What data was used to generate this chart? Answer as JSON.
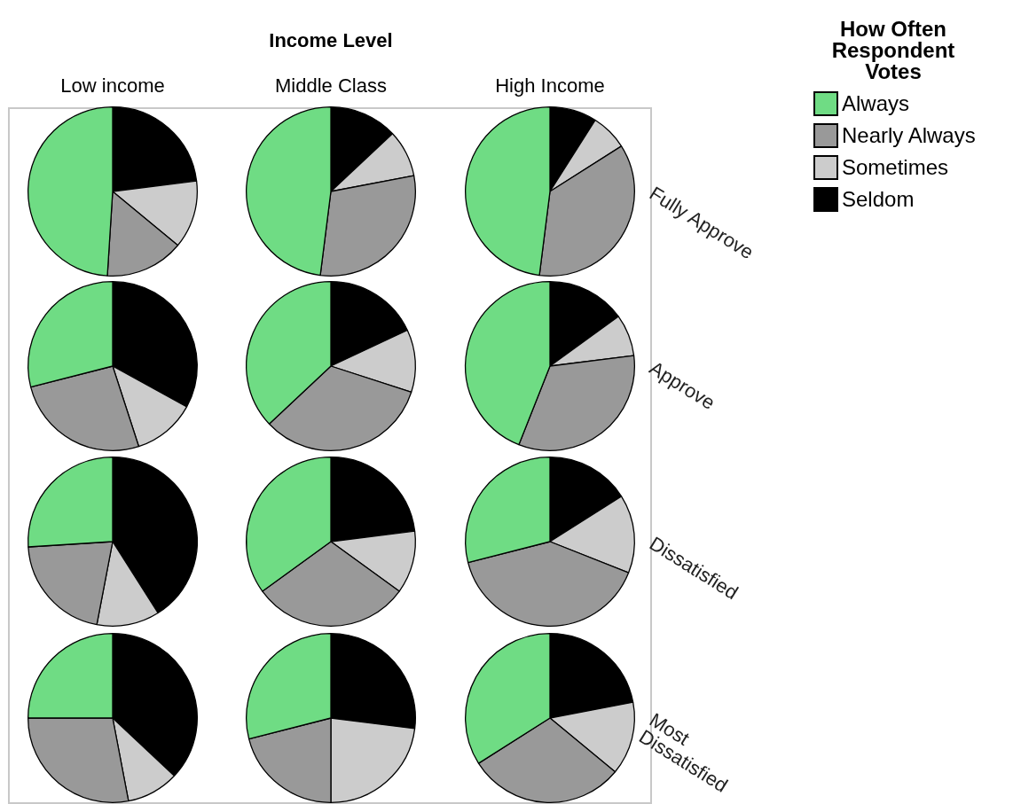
{
  "chart_data": [
    {
      "type": "pie",
      "title": "Low income",
      "categories": [
        null,
        null,
        null,
        null
      ],
      "values": [
        23,
        13,
        15,
        49
      ],
      "colors": [
        "#000000",
        "#cccccc",
        "#999999",
        "#6fdc84"
      ]
    },
    {
      "type": "pie",
      "title": "Middle Class",
      "annotations": [
        "Income Level"
      ],
      "categories": [
        null,
        null,
        null,
        null
      ],
      "values": [
        13,
        9,
        30,
        48
      ],
      "colors": [
        "#000000",
        "#cccccc",
        "#999999",
        "#6fdc84"
      ]
    },
    {
      "type": "pie",
      "title": "High Income",
      "annotations": [
        "Fully Approve"
      ],
      "legend": "right",
      "legend_title": "How Often Respondent Votes",
      "categories": [
        "Seldom",
        "Sometimes",
        "Nearly Always",
        "Always"
      ],
      "values": [
        9,
        7,
        36,
        48
      ],
      "colors": [
        "#000000",
        "#cccccc",
        "#999999",
        "#6fdc84"
      ]
    },
    {
      "type": "pie",
      "categories": [
        null,
        null,
        null,
        null
      ],
      "values": [
        33,
        12,
        26,
        29
      ],
      "colors": [
        "#000000",
        "#cccccc",
        "#999999",
        "#6fdc84"
      ]
    },
    {
      "type": "pie",
      "categories": [
        null,
        null,
        null,
        null
      ],
      "values": [
        18,
        12,
        33,
        37
      ],
      "colors": [
        "#000000",
        "#cccccc",
        "#999999",
        "#6fdc84"
      ]
    },
    {
      "type": "pie",
      "annotations": [
        "Approve"
      ],
      "categories": [
        null,
        null,
        null,
        null
      ],
      "values": [
        15,
        8,
        33,
        44
      ],
      "colors": [
        "#000000",
        "#cccccc",
        "#999999",
        "#6fdc84"
      ]
    },
    {
      "type": "pie",
      "categories": [
        null,
        null,
        null,
        null
      ],
      "values": [
        41,
        12,
        21,
        26
      ],
      "colors": [
        "#000000",
        "#cccccc",
        "#999999",
        "#6fdc84"
      ]
    },
    {
      "type": "pie",
      "categories": [
        null,
        null,
        null,
        null
      ],
      "values": [
        23,
        12,
        30,
        35
      ],
      "colors": [
        "#000000",
        "#cccccc",
        "#999999",
        "#6fdc84"
      ]
    },
    {
      "type": "pie",
      "annotations": [
        "Dissatisfied"
      ],
      "categories": [
        null,
        null,
        null,
        null
      ],
      "values": [
        16,
        15,
        40,
        29
      ],
      "colors": [
        "#000000",
        "#cccccc",
        "#999999",
        "#6fdc84"
      ]
    },
    {
      "type": "pie",
      "categories": [
        null,
        null,
        null,
        null
      ],
      "values": [
        37,
        10,
        28,
        25
      ],
      "colors": [
        "#000000",
        "#cccccc",
        "#999999",
        "#6fdc84"
      ]
    },
    {
      "type": "pie",
      "categories": [
        null,
        null,
        null,
        null
      ],
      "values": [
        27,
        23,
        21,
        29
      ],
      "colors": [
        "#000000",
        "#cccccc",
        "#999999",
        "#6fdc84"
      ]
    },
    {
      "type": "pie",
      "annotations": [
        "Most Dissatisfied"
      ],
      "categories": [
        null,
        null,
        null,
        null
      ],
      "values": [
        22,
        14,
        30,
        34
      ],
      "colors": [
        "#000000",
        "#cccccc",
        "#999999",
        "#6fdc84"
      ]
    }
  ]
}
